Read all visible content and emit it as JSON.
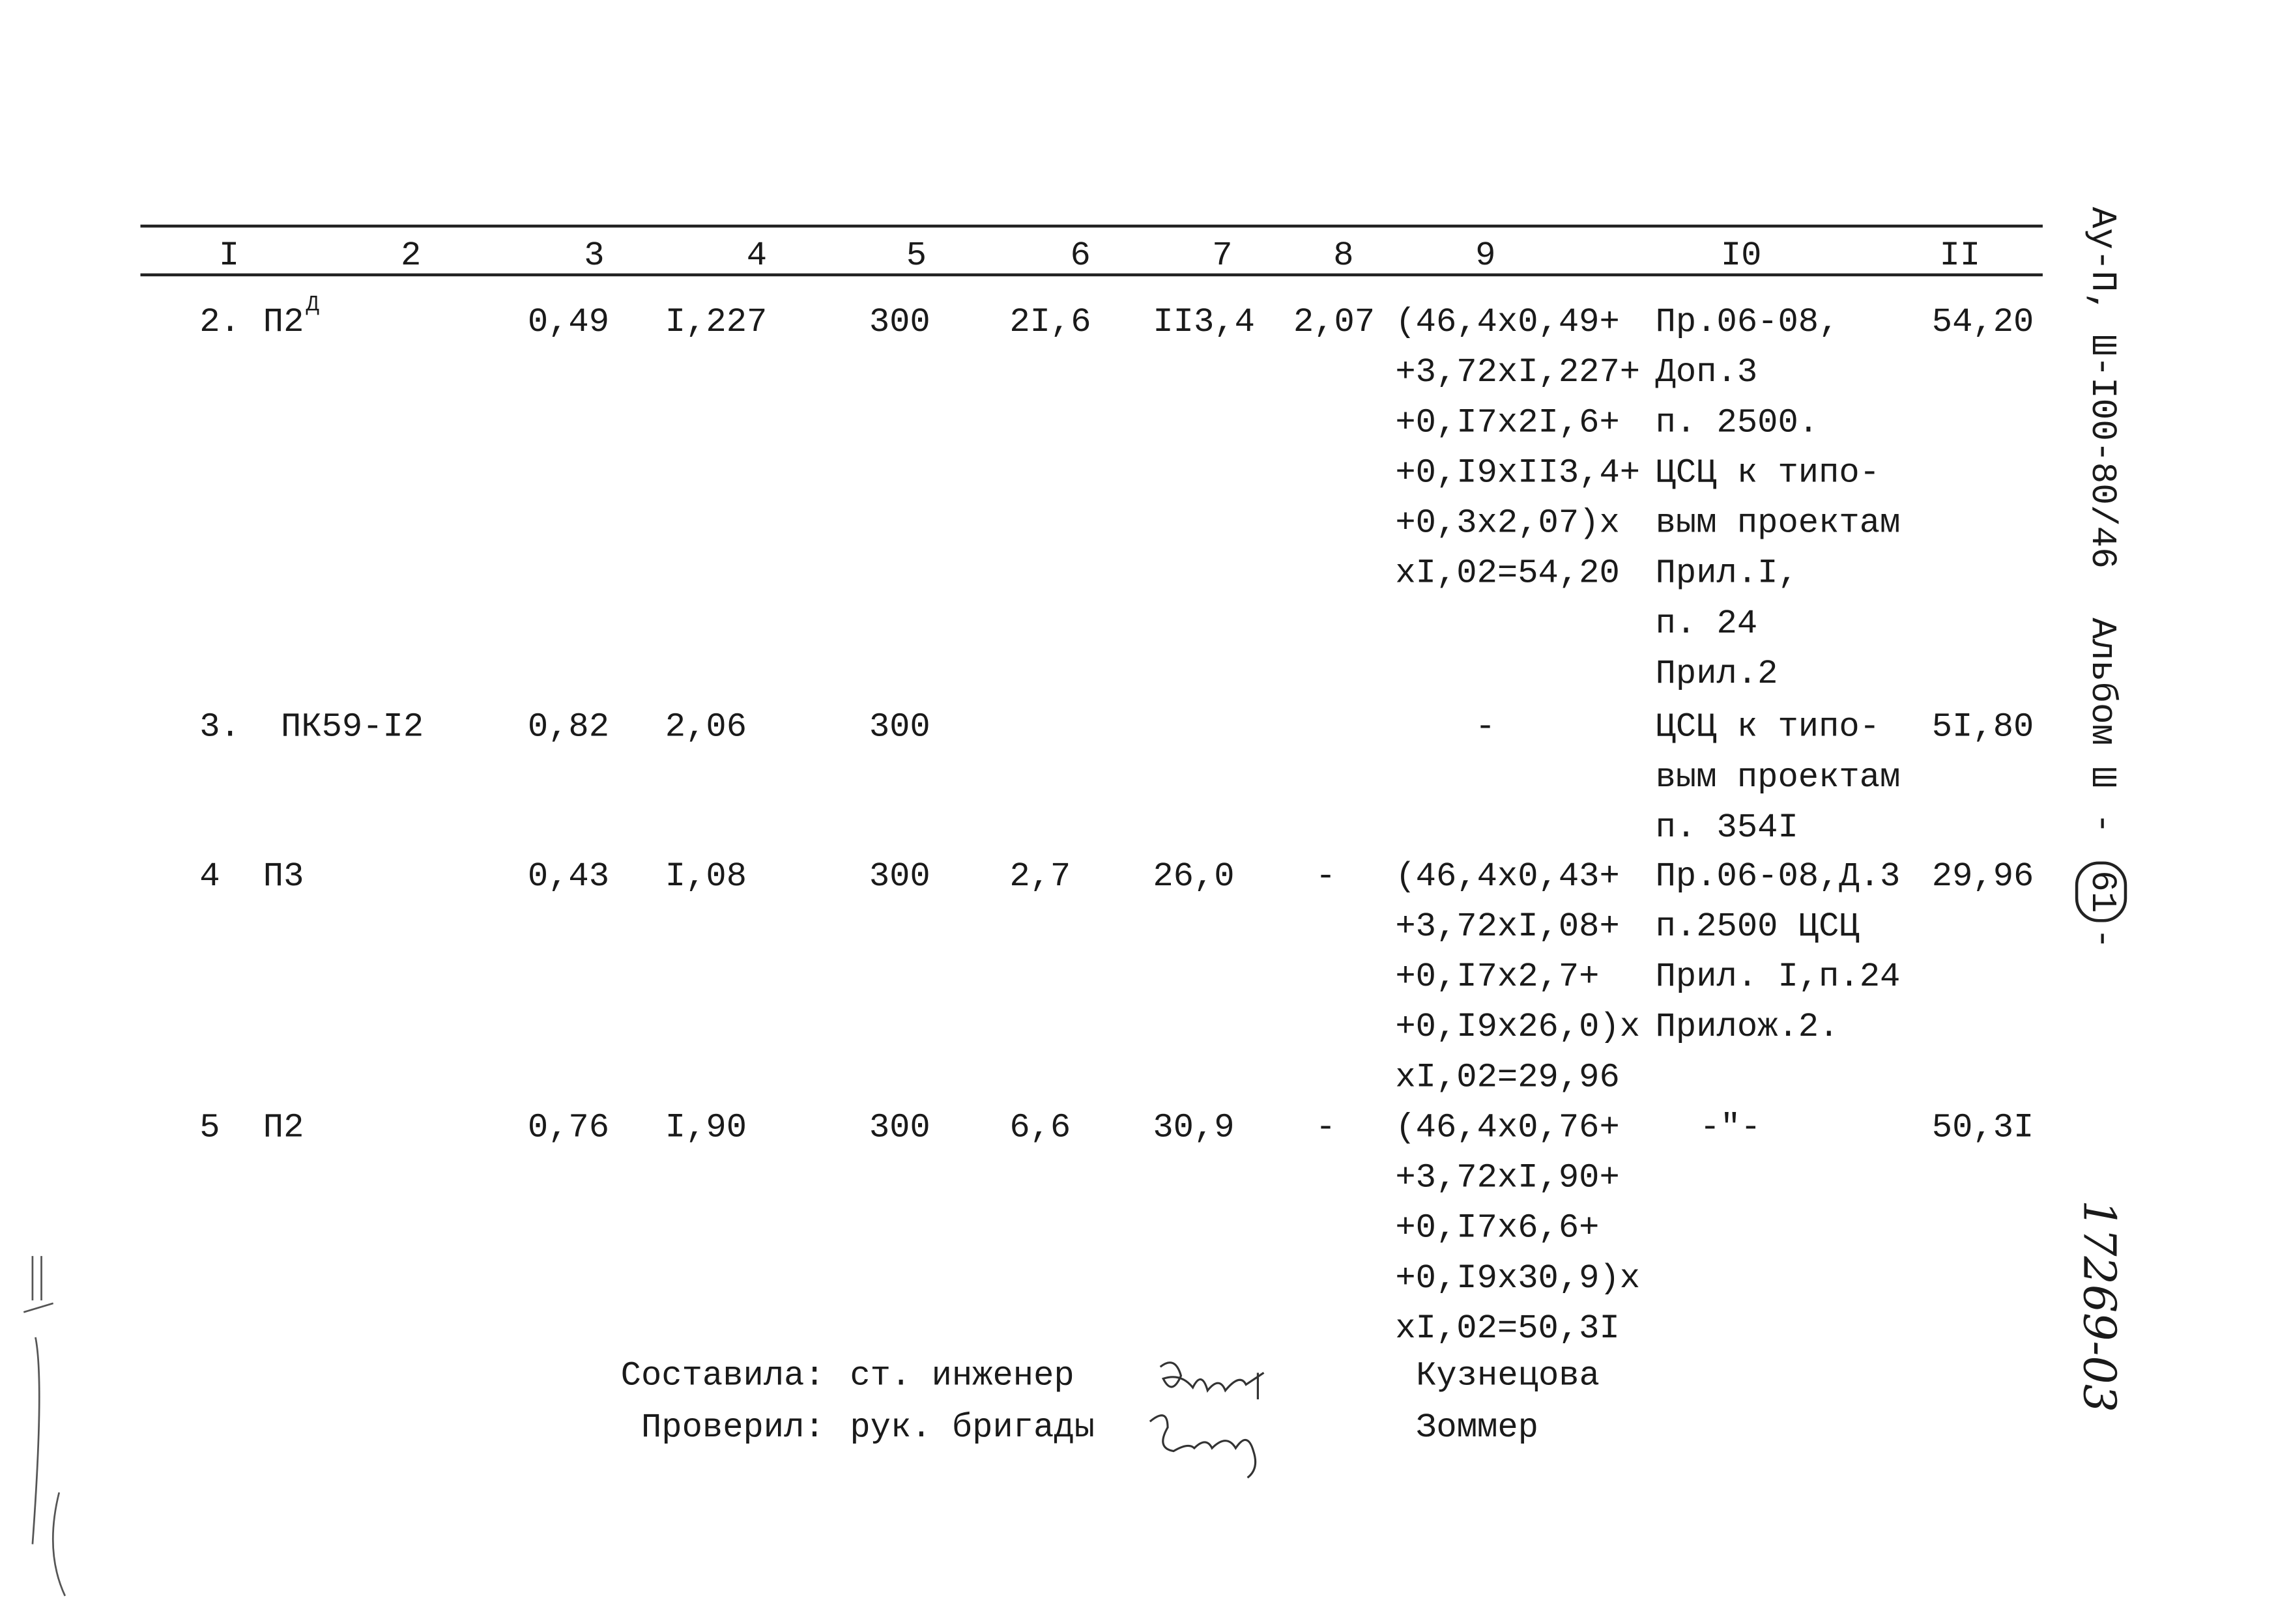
{
  "table": {
    "header": [
      "I",
      "2",
      "3",
      "4",
      "5",
      "6",
      "7",
      "8",
      "9",
      "I0",
      "II"
    ],
    "rows": [
      {
        "num": "2.",
        "name": "П2",
        "name_sup": "Д",
        "c3": "0,49",
        "c4": "I,227",
        "c5": "300",
        "c6": "2I,6",
        "c7": "II3,4",
        "c8": "2,07",
        "c9": [
          "(46,4x0,49+",
          "+3,72xI,227+",
          "+0,I7x2I,6+",
          "+0,I9xII3,4+",
          "+0,3x2,07)x",
          "xI,02=54,20"
        ],
        "c10": [
          "Пр.06-08,",
          "Доп.3",
          "п. 2500.",
          "ЦСЦ к типо-",
          "вым проектам",
          "Прил.I,",
          "п. 24",
          "Прил.2"
        ],
        "c11": "54,20"
      },
      {
        "num": "3.",
        "name": "ПК59-I2",
        "c3": "0,82",
        "c4": "2,06",
        "c5": "300",
        "c9": [
          "-"
        ],
        "c10": [
          "ЦСЦ к типо-",
          "вым проектам",
          "п. 354I"
        ],
        "c11": "5I,80"
      },
      {
        "num": "4",
        "name": "П3",
        "c3": "0,43",
        "c4": "I,08",
        "c5": "300",
        "c6": "2,7",
        "c7": "26,0",
        "c8": "-",
        "c9": [
          "(46,4x0,43+",
          "+3,72xI,08+",
          "+0,I7x2,7+",
          "+0,I9x26,0)x",
          "xI,02=29,96"
        ],
        "c10": [
          "Пр.06-08,Д.3",
          "п.2500 ЦСЦ",
          "Прил. I,п.24",
          "Прилож.2."
        ],
        "c11": "29,96"
      },
      {
        "num": "5",
        "name": "П2",
        "c3": "0,76",
        "c4": "I,90",
        "c5": "300",
        "c6": "6,6",
        "c7": "30,9",
        "c8": "-",
        "c9": [
          "(46,4x0,76+",
          "+3,72xI,90+",
          "+0,I7x6,6+",
          "+0,I9x30,9)x",
          "xI,02=50,3I"
        ],
        "c10": [
          "-\"-"
        ],
        "c11": "50,3I"
      }
    ]
  },
  "signatures": [
    {
      "role": "Составила:",
      "position": "ст. инженер",
      "name": "Кузнецова"
    },
    {
      "role": "Проверил:",
      "position": "рук. бригады",
      "name": "Зоммер"
    }
  ],
  "margin": {
    "code": "Ау-П, Ш-I00-80/46",
    "album": "Альбом Ш",
    "dash1": "-",
    "sheet": "61",
    "dash2": "-",
    "inventory": "17269-03"
  }
}
